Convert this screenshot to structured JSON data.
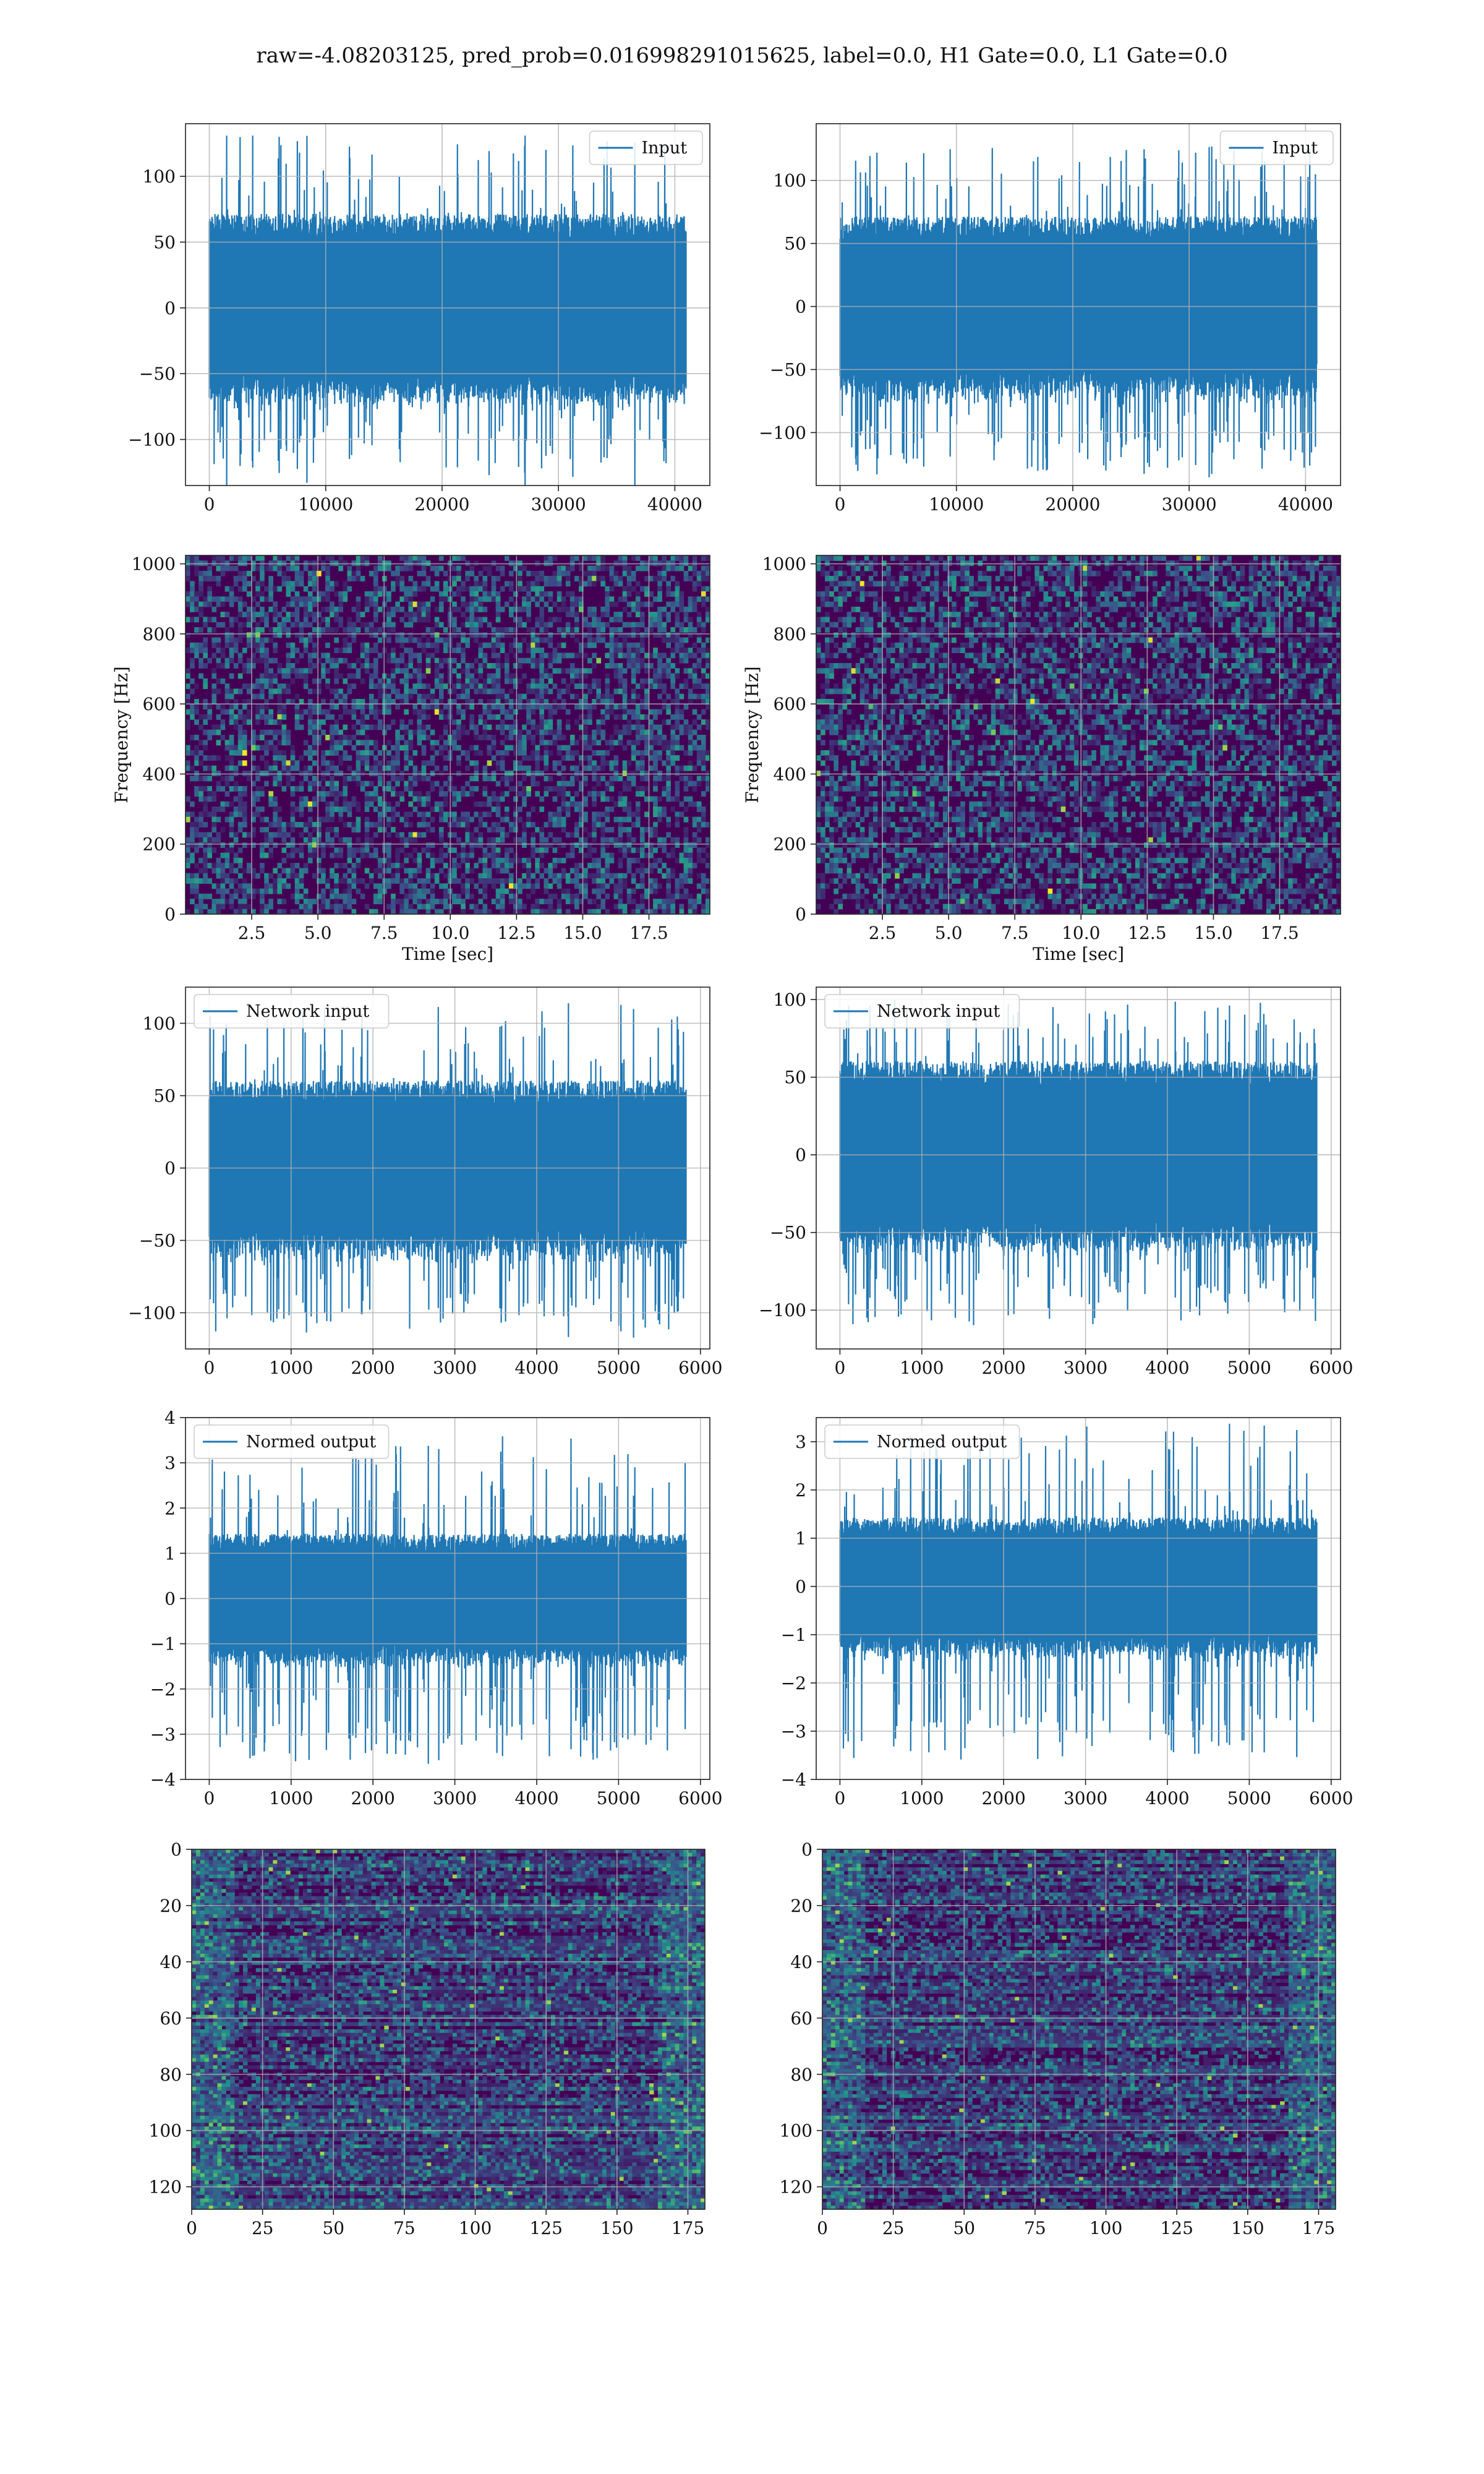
{
  "title": "raw=-4.08203125, pred_prob=0.016998291015625, label=0.0, H1 Gate=0.0, L1 Gate=0.0",
  "colors": {
    "line": "#1f77b4",
    "grid": "#b0b0b0",
    "viridis_low": "#440154",
    "viridis_mid": "#21918c",
    "viridis_high": "#fde725"
  },
  "chart_data": [
    {
      "id": "r1c1",
      "type": "line",
      "legend": "Input",
      "legend_pos": "top-right",
      "x_range": [
        0,
        40960
      ],
      "xlim": [
        -2048,
        43008
      ],
      "ylim": [
        -135,
        140
      ],
      "xticks": [
        0,
        10000,
        20000,
        30000,
        40000
      ],
      "yticks": [
        -100,
        -50,
        0,
        50,
        100
      ],
      "grid": true,
      "envelope": {
        "core": 65,
        "peak_max": 131,
        "peak_min": -123
      }
    },
    {
      "id": "r1c2",
      "type": "line",
      "legend": "Input",
      "legend_pos": "top-right",
      "x_range": [
        0,
        40960
      ],
      "xlim": [
        -2048,
        43008
      ],
      "ylim": [
        -142,
        145
      ],
      "xticks": [
        0,
        10000,
        20000,
        30000,
        40000
      ],
      "yticks": [
        -100,
        -50,
        0,
        50,
        100
      ],
      "grid": true,
      "envelope": {
        "core": 65,
        "peak_max": 127,
        "peak_min": -131
      }
    },
    {
      "id": "r2c1",
      "type": "heatmap",
      "ylabel": "Frequency [Hz]",
      "xlabel": "Time [sec]",
      "xlim": [
        0,
        19.8
      ],
      "ylim": [
        0,
        1024
      ],
      "xticks": [
        2.5,
        5.0,
        7.5,
        10.0,
        12.5,
        15.0,
        17.5
      ],
      "yticks": [
        0,
        200,
        400,
        600,
        800,
        1000
      ],
      "grid": true,
      "colormap": "viridis"
    },
    {
      "id": "r2c2",
      "type": "heatmap",
      "ylabel": "Frequency [Hz]",
      "xlabel": "Time [sec]",
      "xlim": [
        0,
        19.8
      ],
      "ylim": [
        0,
        1024
      ],
      "xticks": [
        2.5,
        5.0,
        7.5,
        10.0,
        12.5,
        15.0,
        17.5
      ],
      "yticks": [
        0,
        200,
        400,
        600,
        800,
        1000
      ],
      "grid": true,
      "colormap": "viridis"
    },
    {
      "id": "r3c1",
      "type": "line",
      "legend": "Network input",
      "legend_pos": "top-left",
      "x_range": [
        0,
        5824
      ],
      "xlim": [
        -290,
        6115
      ],
      "ylim": [
        -125,
        125
      ],
      "xticks": [
        0,
        1000,
        2000,
        3000,
        4000,
        5000,
        6000
      ],
      "yticks": [
        -100,
        -50,
        0,
        50,
        100
      ],
      "grid": true,
      "envelope": {
        "core": 55,
        "peak_max": 114,
        "peak_min": -114
      }
    },
    {
      "id": "r3c2",
      "type": "line",
      "legend": "Network input",
      "legend_pos": "top-left",
      "x_range": [
        0,
        5824
      ],
      "xlim": [
        -290,
        6115
      ],
      "ylim": [
        -125,
        108
      ],
      "xticks": [
        0,
        1000,
        2000,
        3000,
        4000,
        5000,
        6000
      ],
      "yticks": [
        -100,
        -50,
        0,
        50,
        100
      ],
      "grid": true,
      "envelope": {
        "core": 55,
        "peak_max": 100,
        "peak_min": -110
      }
    },
    {
      "id": "r4c1",
      "type": "line",
      "legend": "Normed output",
      "legend_pos": "top-left",
      "x_range": [
        0,
        5824
      ],
      "xlim": [
        -290,
        6115
      ],
      "ylim": [
        -4,
        4
      ],
      "xticks": [
        0,
        1000,
        2000,
        3000,
        4000,
        5000,
        6000
      ],
      "yticks": [
        -4,
        -3,
        -2,
        -1,
        0,
        1,
        2,
        3,
        4
      ],
      "grid": true,
      "envelope": {
        "core": 1.3,
        "peak_max": 3.6,
        "peak_min": -3.6
      }
    },
    {
      "id": "r4c2",
      "type": "line",
      "legend": "Normed output",
      "legend_pos": "top-left",
      "x_range": [
        0,
        5824
      ],
      "xlim": [
        -290,
        6115
      ],
      "ylim": [
        -4,
        3.5
      ],
      "xticks": [
        0,
        1000,
        2000,
        3000,
        4000,
        5000,
        6000
      ],
      "yticks": [
        -4,
        -3,
        -2,
        -1,
        0,
        1,
        2,
        3
      ],
      "grid": true,
      "envelope": {
        "core": 1.3,
        "peak_max": 3.4,
        "peak_min": -3.6
      }
    },
    {
      "id": "r5c1",
      "type": "heatmap",
      "xlim": [
        0,
        181
      ],
      "ylim": [
        128,
        0
      ],
      "xticks": [
        0,
        25,
        50,
        75,
        100,
        125,
        150,
        175
      ],
      "yticks": [
        0,
        20,
        40,
        60,
        80,
        100,
        120
      ],
      "grid": true,
      "colormap": "viridis",
      "shape": [
        128,
        182
      ]
    },
    {
      "id": "r5c2",
      "type": "heatmap",
      "xlim": [
        0,
        181
      ],
      "ylim": [
        128,
        0
      ],
      "xticks": [
        0,
        25,
        50,
        75,
        100,
        125,
        150,
        175
      ],
      "yticks": [
        0,
        20,
        40,
        60,
        80,
        100,
        120
      ],
      "grid": true,
      "colormap": "viridis",
      "shape": [
        128,
        182
      ]
    }
  ]
}
